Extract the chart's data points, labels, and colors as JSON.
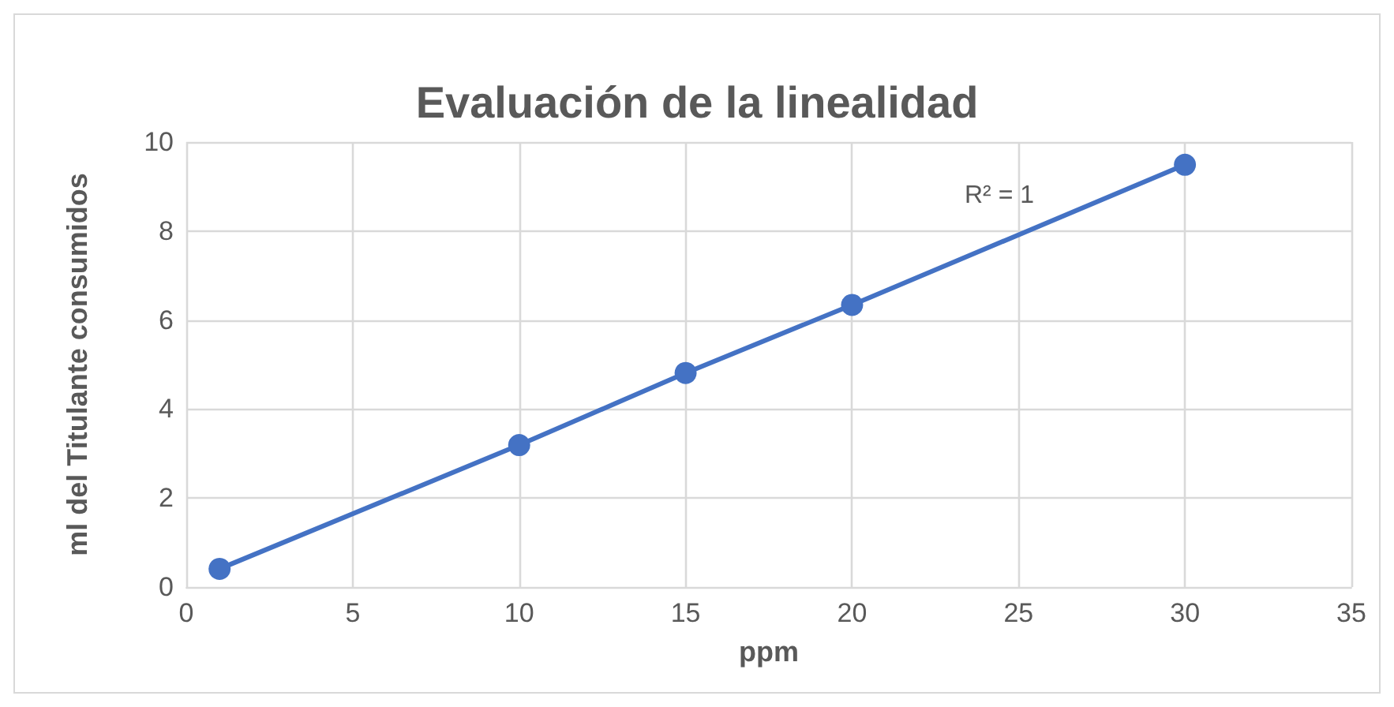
{
  "chart_data": {
    "type": "line",
    "title": "Evaluación de la linealidad",
    "xlabel": "ppm",
    "ylabel": "ml del Titulante consumidos",
    "x": [
      1,
      10,
      15,
      20,
      30
    ],
    "series": [
      {
        "color": "#4472c4",
        "values": [
          0.41,
          3.19,
          4.81,
          6.34,
          9.49
        ]
      }
    ],
    "xlim": [
      0,
      35
    ],
    "xticks": [
      0,
      5,
      10,
      15,
      20,
      25,
      30,
      35
    ],
    "ylim": [
      0,
      10
    ],
    "yticks": [
      0,
      2,
      4,
      6,
      8,
      10
    ],
    "grid": true,
    "marker": "circle",
    "line_style": "solid",
    "annotations": [
      "R² = 1"
    ]
  }
}
